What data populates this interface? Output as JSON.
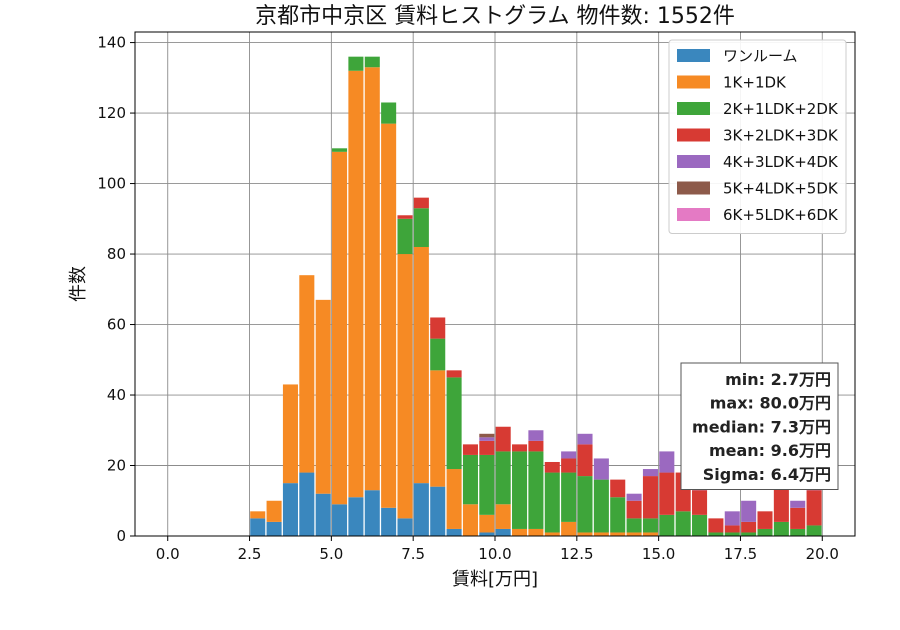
{
  "chart_data": {
    "type": "bar",
    "stacked": true,
    "title": "京都市中京区 賃料ヒストグラム 物件数: 1552件",
    "xlabel": "賃料[万円]",
    "ylabel": "件数",
    "xlim": [
      -1.0,
      21.0
    ],
    "ylim": [
      0,
      143
    ],
    "xticks": [
      0.0,
      2.5,
      5.0,
      7.5,
      10.0,
      12.5,
      15.0,
      17.5,
      20.0
    ],
    "xtick_labels": [
      "0.0",
      "2.5",
      "5.0",
      "7.5",
      "10.0",
      "12.5",
      "15.0",
      "17.5",
      "20.0"
    ],
    "yticks": [
      0,
      20,
      40,
      60,
      80,
      100,
      120,
      140
    ],
    "ytick_labels": [
      "0",
      "20",
      "40",
      "60",
      "80",
      "100",
      "120",
      "140"
    ],
    "grid": true,
    "legend_position": "top-right",
    "bin_width": 0.5,
    "bins": [
      2.5,
      3.0,
      3.5,
      4.0,
      4.5,
      5.0,
      5.5,
      6.0,
      6.5,
      7.0,
      7.5,
      8.0,
      8.5,
      9.0,
      9.5,
      10.0,
      10.5,
      11.0,
      11.5,
      12.0,
      12.5,
      13.0,
      13.5,
      14.0,
      14.5,
      15.0,
      15.5,
      16.0,
      16.5,
      17.0,
      17.5,
      18.0,
      18.5,
      19.0,
      19.5
    ],
    "series": [
      {
        "name": "ワンルーム",
        "color": "#3a87be",
        "values": [
          5,
          4,
          15,
          18,
          12,
          9,
          11,
          13,
          8,
          5,
          15,
          14,
          2,
          0,
          1,
          2,
          0,
          0,
          0,
          0,
          0,
          0,
          0,
          0,
          0,
          0,
          0,
          0,
          0,
          0,
          0,
          0,
          0,
          0,
          0
        ]
      },
      {
        "name": "1K+1DK",
        "color": "#f68a24",
        "values": [
          2,
          6,
          28,
          56,
          55,
          100,
          121,
          120,
          109,
          75,
          67,
          33,
          17,
          9,
          5,
          7,
          2,
          2,
          1,
          4,
          1,
          1,
          1,
          1,
          1,
          0,
          0,
          0,
          0,
          0,
          0,
          0,
          0,
          0,
          0
        ]
      },
      {
        "name": "2K+1LDK+2DK",
        "color": "#3ea53a",
        "values": [
          0,
          0,
          0,
          0,
          0,
          1,
          4,
          3,
          6,
          10,
          11,
          9,
          26,
          14,
          17,
          15,
          22,
          22,
          17,
          14,
          16,
          15,
          10,
          4,
          4,
          6,
          7,
          6,
          1,
          1,
          1,
          2,
          4,
          2,
          3
        ]
      },
      {
        "name": "3K+2LDK+3DK",
        "color": "#d73a33",
        "values": [
          0,
          0,
          0,
          0,
          0,
          0,
          0,
          0,
          0,
          1,
          3,
          6,
          2,
          3,
          4,
          7,
          2,
          3,
          3,
          4,
          9,
          0,
          5,
          5,
          12,
          12,
          11,
          7,
          4,
          2,
          3,
          5,
          19,
          6,
          10
        ]
      },
      {
        "name": "4K+3LDK+4DK",
        "color": "#9b69c0",
        "values": [
          0,
          0,
          0,
          0,
          0,
          0,
          0,
          0,
          0,
          0,
          0,
          0,
          0,
          0,
          1,
          0,
          0,
          3,
          0,
          2,
          3,
          6,
          0,
          2,
          2,
          6,
          0,
          1,
          0,
          4,
          6,
          0,
          0,
          2,
          2
        ]
      },
      {
        "name": "5K+4LDK+5DK",
        "color": "#8d5a4a",
        "values": [
          0,
          0,
          0,
          0,
          0,
          0,
          0,
          0,
          0,
          0,
          0,
          0,
          0,
          0,
          1,
          0,
          0,
          0,
          0,
          0,
          0,
          0,
          0,
          0,
          0,
          0,
          0,
          0,
          0,
          0,
          0,
          0,
          0,
          0,
          0
        ]
      },
      {
        "name": "6K+5LDK+6DK",
        "color": "#e47ac4",
        "values": [
          0,
          0,
          0,
          0,
          0,
          0,
          0,
          0,
          0,
          0,
          0,
          0,
          0,
          0,
          0,
          0,
          0,
          0,
          0,
          0,
          0,
          0,
          0,
          0,
          0,
          0,
          0,
          0,
          0,
          0,
          0,
          0,
          0,
          0,
          0
        ]
      }
    ],
    "stats_lines": [
      "min: 2.7万円",
      "max: 80.0万円",
      "median: 7.3万円",
      "mean: 9.6万円",
      "Sigma: 6.4万円"
    ]
  }
}
